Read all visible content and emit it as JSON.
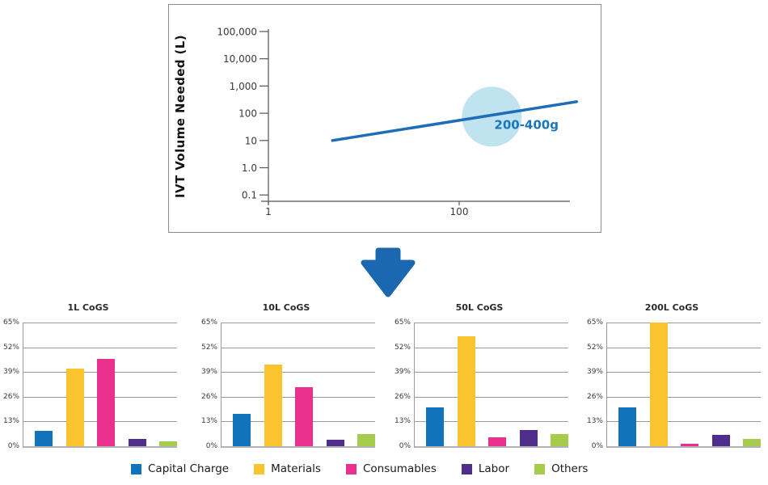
{
  "chart_data": [
    {
      "id": "ivt-volume-vs-output",
      "type": "line",
      "title": "",
      "xlabel": "",
      "ylabel": "IVT Volume Needed (L)",
      "x_scale": "log",
      "y_scale": "log",
      "xlim": [
        1,
        2000
      ],
      "ylim": [
        0.1,
        100000
      ],
      "x_tick_labels": [
        "1",
        "100"
      ],
      "x_tick_values": [
        1,
        100
      ],
      "y_tick_labels": [
        "100,000",
        "10,000",
        "1,000",
        "100",
        "10",
        "1.0",
        "0.1"
      ],
      "y_tick_values": [
        100000,
        10000,
        1000,
        100,
        10,
        1,
        0.1
      ],
      "grid": false,
      "series": [
        {
          "name": "IVT volume needed",
          "color": "#1d6db9",
          "x": [
            4.7,
            1700
          ],
          "y": [
            10,
            265
          ]
        }
      ],
      "annotations": [
        {
          "type": "bubble-highlight",
          "text": "200-400g",
          "x": 220,
          "y": 75,
          "bubble_color": "#bfe4f0",
          "text_color": "#1a76bd"
        }
      ]
    },
    {
      "id": "cogs-1l",
      "type": "bar",
      "title": "1L CoGS",
      "values": [
        8,
        41,
        46,
        4,
        2.5
      ]
    },
    {
      "id": "cogs-10l",
      "type": "bar",
      "title": "10L CoGS",
      "values": [
        17,
        43,
        31,
        3.5,
        6.5
      ]
    },
    {
      "id": "cogs-50l",
      "type": "bar",
      "title": "50L CoGS",
      "values": [
        20.5,
        58,
        4.5,
        8.5,
        6.5
      ]
    },
    {
      "id": "cogs-200l",
      "type": "bar",
      "title": "200L CoGS",
      "values": [
        20.5,
        65,
        1.5,
        6,
        4
      ]
    }
  ],
  "cogs_common": {
    "categories": [
      "Capital Charge",
      "Materials",
      "Consumables",
      "Labor",
      "Others"
    ],
    "bar_colors": [
      "#1173b9",
      "#fbc32d",
      "#e9308c",
      "#4f2d8a",
      "#a6cc4e"
    ],
    "y_tick_labels": [
      "65%",
      "52%",
      "39%",
      "26%",
      "13%",
      "0%"
    ],
    "y_tick_values": [
      65,
      52,
      39,
      26,
      13,
      0
    ],
    "ylim": [
      0,
      65
    ],
    "grid": true,
    "legend_position": "bottom"
  },
  "legend": {
    "items": [
      {
        "label": "Capital Charge",
        "color": "#1173b9"
      },
      {
        "label": "Materials",
        "color": "#fbc32d"
      },
      {
        "label": "Consumables",
        "color": "#e9308c"
      },
      {
        "label": "Labor",
        "color": "#4f2d8a"
      },
      {
        "label": "Others",
        "color": "#a6cc4e"
      }
    ]
  },
  "arrow": {
    "direction": "down",
    "color": "#1b67b0"
  }
}
